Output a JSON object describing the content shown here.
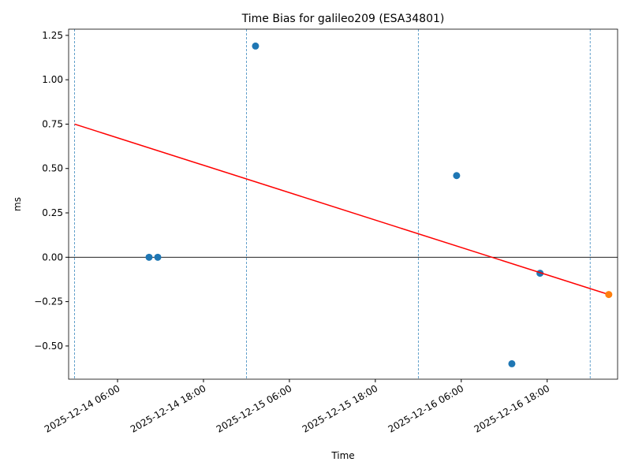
{
  "chart_data": {
    "type": "scatter",
    "title": "Time Bias for galileo209 (ESA34801)",
    "x_label": "Time",
    "y_label": "ms",
    "xlim": [
      "2025-12-13 23:10",
      "2025-12-17 03:50"
    ],
    "xticks": [
      "2025-12-14 06:00",
      "2025-12-14 18:00",
      "2025-12-15 06:00",
      "2025-12-15 18:00",
      "2025-12-16 06:00",
      "2025-12-16 18:00"
    ],
    "ylim": [
      -0.687,
      1.285
    ],
    "yticks": [
      {
        "value": -0.5,
        "label": "−0.50"
      },
      {
        "value": -0.25,
        "label": "−0.25"
      },
      {
        "value": 0,
        "label": "0.00"
      },
      {
        "value": 0.25,
        "label": "0.25"
      },
      {
        "value": 0.5,
        "label": "0.50"
      },
      {
        "value": 0.75,
        "label": "0.75"
      },
      {
        "value": 1,
        "label": "1.00"
      },
      {
        "value": 1.25,
        "label": "1.25"
      }
    ],
    "vlines": [
      "2025-12-14 00:00",
      "2025-12-15 00:00",
      "2025-12-16 00:00",
      "2025-12-17 00:00"
    ],
    "hline": 0,
    "series": [
      {
        "type": "scatter",
        "color": "#1f77b4",
        "x": [
          "2025-12-14 10:24",
          "2025-12-14 11:37",
          "2025-12-15 01:16",
          "2025-12-16 05:21",
          "2025-12-16 13:04",
          "2025-12-16 17:00"
        ],
        "values": [
          0.0,
          0.0,
          1.19,
          0.46,
          -0.6,
          -0.09
        ]
      },
      {
        "type": "line",
        "color": "#ff0000",
        "x": [
          "2025-12-14 00:00",
          "2025-12-17 02:36"
        ],
        "values": [
          0.75,
          -0.21
        ]
      },
      {
        "type": "scatter",
        "color": "#ff7f0e",
        "x": [
          "2025-12-17 02:36"
        ],
        "values": [
          -0.21
        ]
      }
    ]
  }
}
